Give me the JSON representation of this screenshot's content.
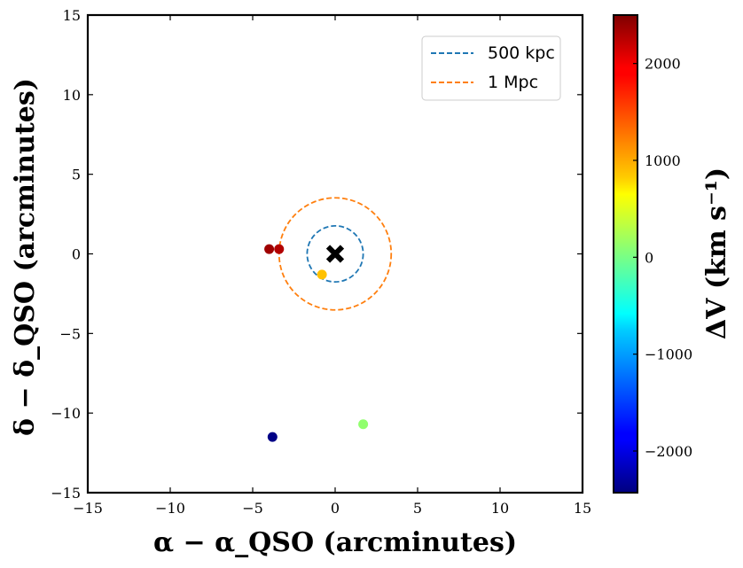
{
  "chart_data": {
    "type": "scatter",
    "xlabel": "α − α_QSO (arcminutes)",
    "ylabel": "δ − δ_QSO (arcminutes)",
    "xlim": [
      -15,
      15
    ],
    "ylim": [
      -15,
      15
    ],
    "xticks": [
      -15,
      -10,
      -5,
      0,
      5,
      10,
      15
    ],
    "yticks": [
      -15,
      -10,
      -5,
      0,
      5,
      10,
      15
    ],
    "xtick_labels": [
      "−15",
      "−10",
      "−5",
      "0",
      "5",
      "10",
      "15"
    ],
    "ytick_labels": [
      "−15",
      "−10",
      "−5",
      "0",
      "5",
      "10",
      "15"
    ],
    "grid": false,
    "legend_position": "top-right",
    "legend": [
      {
        "label": "500 kpc",
        "color": "#1f77b4",
        "style": "dashed"
      },
      {
        "label": "1 Mpc",
        "color": "#ff7f0e",
        "style": "dashed"
      }
    ],
    "circles": [
      {
        "name": "500 kpc",
        "radius": 1.7,
        "color": "#1f77b4"
      },
      {
        "name": "1 Mpc",
        "radius": 3.4,
        "color": "#ff7f0e"
      }
    ],
    "qso": {
      "x": 0,
      "y": 0,
      "marker": "x",
      "color": "#000000"
    },
    "points": [
      {
        "x": -4.0,
        "y": 0.3,
        "dv": 2350
      },
      {
        "x": -3.4,
        "y": 0.3,
        "dv": 2250
      },
      {
        "x": -0.8,
        "y": -1.3,
        "dv": 950
      },
      {
        "x": 1.7,
        "y": -10.7,
        "dv": 120
      },
      {
        "x": -3.8,
        "y": -11.5,
        "dv": -2400
      }
    ],
    "colorbar": {
      "label": "ΔV (km s⁻¹)",
      "cmap": "jet",
      "range": [
        -2430,
        2500
      ],
      "ticks": [
        -2000,
        -1000,
        0,
        1000,
        2000
      ],
      "tick_labels": [
        "−2000",
        "−1000",
        "0",
        "1000",
        "2000"
      ]
    }
  }
}
